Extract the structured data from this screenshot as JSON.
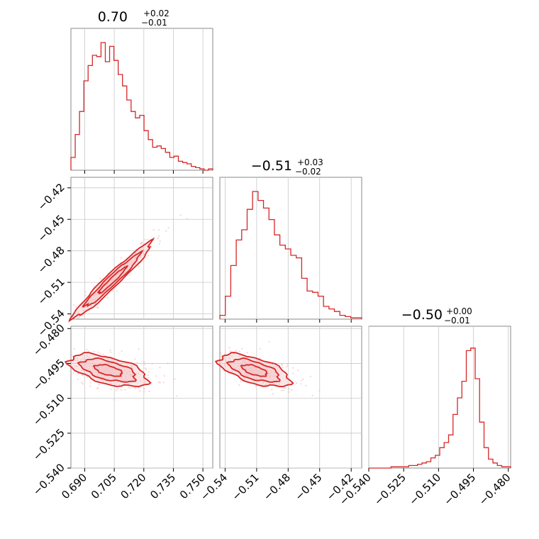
{
  "chart_data": {
    "type": "corner",
    "color": "#d62728",
    "fill_color": "#f4c7c8",
    "grid": true,
    "parameters": [
      {
        "title": {
          "value": "0.70",
          "plus": "+0.02",
          "minus": "−0.01"
        },
        "range": [
          0.683,
          0.755
        ],
        "ticks": [
          {
            "value": 0.69,
            "label": "0.690"
          },
          {
            "value": 0.705,
            "label": "0.705"
          },
          {
            "value": 0.72,
            "label": "0.720"
          },
          {
            "value": 0.735,
            "label": "0.735"
          },
          {
            "value": 0.75,
            "label": "0.750"
          }
        ],
        "histogram": [
          0.1,
          0.28,
          0.46,
          0.7,
          0.82,
          0.9,
          0.89,
          1.0,
          0.85,
          0.97,
          0.86,
          0.75,
          0.66,
          0.55,
          0.46,
          0.41,
          0.43,
          0.31,
          0.24,
          0.18,
          0.19,
          0.17,
          0.14,
          0.1,
          0.11,
          0.07,
          0.06,
          0.05,
          0.03,
          0.02,
          0.01,
          0.0,
          0.01
        ]
      },
      {
        "title": {
          "value": "−0.51",
          "plus": "+0.03",
          "minus": "−0.02"
        },
        "range": [
          -0.545,
          -0.41
        ],
        "ticks": [
          {
            "value": -0.54,
            "label": "−0.54"
          },
          {
            "value": -0.51,
            "label": "−0.51"
          },
          {
            "value": -0.48,
            "label": "−0.48"
          },
          {
            "value": -0.45,
            "label": "−0.45"
          },
          {
            "value": -0.42,
            "label": "−0.42"
          }
        ],
        "histogram": [
          0.03,
          0.18,
          0.42,
          0.62,
          0.7,
          0.86,
          1.0,
          0.93,
          0.87,
          0.78,
          0.66,
          0.58,
          0.55,
          0.5,
          0.48,
          0.32,
          0.22,
          0.21,
          0.18,
          0.1,
          0.08,
          0.06,
          0.03,
          0.02,
          0.01,
          0.01
        ]
      },
      {
        "title": {
          "value": "−0.50",
          "plus": "+0.00",
          "minus": "−0.01"
        },
        "range": [
          -0.54,
          -0.479
        ],
        "ticks": [
          {
            "value": -0.54,
            "label": "−0.540"
          },
          {
            "value": -0.525,
            "label": "−0.525"
          },
          {
            "value": -0.51,
            "label": "−0.510"
          },
          {
            "value": -0.495,
            "label": "−0.495"
          },
          {
            "value": -0.48,
            "label": "−0.480"
          }
        ],
        "histogram": [
          0.0,
          0.0,
          0.0,
          0.0,
          0.0,
          0.01,
          0.01,
          0.01,
          0.01,
          0.02,
          0.02,
          0.03,
          0.04,
          0.05,
          0.08,
          0.1,
          0.16,
          0.2,
          0.26,
          0.42,
          0.55,
          0.68,
          0.92,
          0.94,
          0.7,
          0.36,
          0.16,
          0.07,
          0.04,
          0.02,
          0.01,
          0.01
        ]
      }
    ],
    "pairs": [
      {
        "x_param": 0,
        "y_param": 1,
        "center": [
          0.704,
          -0.508
        ],
        "sigma": [
          0.01,
          0.018
        ],
        "correlation": 0.97,
        "level_scale": [
          0.35,
          0.7,
          1.0
        ]
      },
      {
        "x_param": 0,
        "y_param": 2,
        "center": [
          0.702,
          -0.498
        ],
        "sigma": [
          0.01,
          0.0035
        ],
        "correlation": -0.55,
        "level_scale": [
          0.35,
          0.7,
          1.0
        ]
      },
      {
        "x_param": 1,
        "y_param": 2,
        "center": [
          -0.512,
          -0.498
        ],
        "sigma": [
          0.017,
          0.0035
        ],
        "correlation": -0.6,
        "level_scale": [
          0.35,
          0.7,
          1.0
        ]
      }
    ]
  }
}
